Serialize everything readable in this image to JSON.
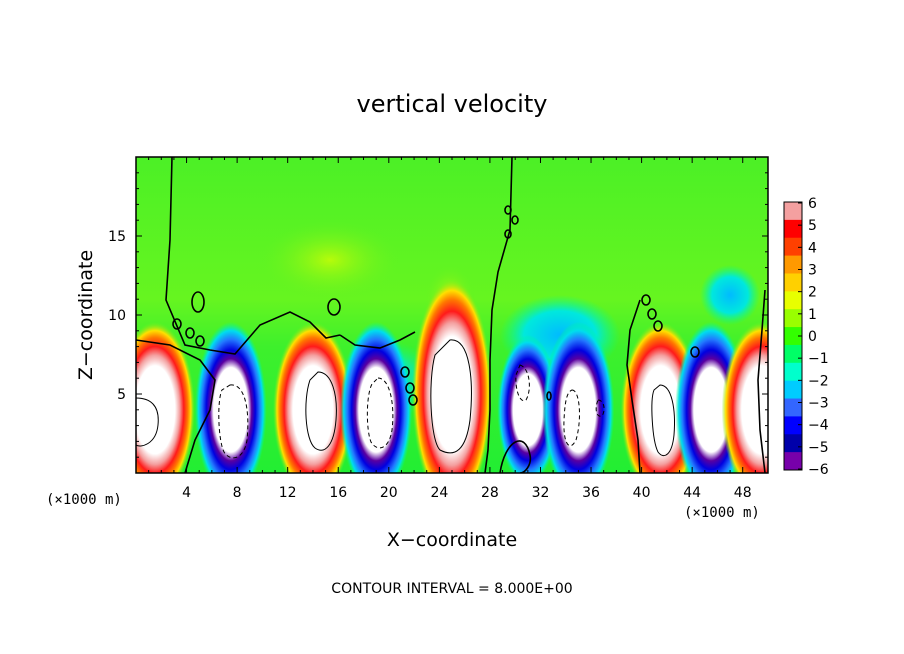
{
  "chart_data": {
    "type": "heatmap",
    "title": "vertical velocity",
    "xlabel": "X−coordinate",
    "ylabel": "Z−coordinate",
    "x_unit": "(×1000 m)",
    "y_unit": "(×1000 m)",
    "x_range": [
      0,
      50
    ],
    "y_range": [
      0,
      20
    ],
    "x_ticks": [
      4,
      8,
      12,
      16,
      20,
      24,
      28,
      32,
      36,
      40,
      44,
      48
    ],
    "y_ticks": [
      5,
      10,
      15
    ],
    "colorbar": {
      "range": [
        -6,
        6
      ],
      "ticks": [
        "6",
        "5",
        "4",
        "3",
        "2",
        "1",
        "0",
        "−1",
        "−2",
        "−3",
        "−4",
        "−5",
        "−6"
      ],
      "colors": [
        "#f4a0a0",
        "#ff0000",
        "#ff4000",
        "#ff9900",
        "#ffd000",
        "#e8ff00",
        "#99ff00",
        "#33ff00",
        "#00ff66",
        "#00ffcc",
        "#00ccff",
        "#3366ff",
        "#0000ff",
        "#0000aa",
        "#7700aa"
      ]
    },
    "contour_interval": "CONTOUR INTERVAL = 8.000E+00",
    "cells": [
      {
        "x": 1.5,
        "peak": 6
      },
      {
        "x": 7.5,
        "peak": -6
      },
      {
        "x": 14,
        "peak": 6
      },
      {
        "x": 19,
        "peak": -6
      },
      {
        "x": 25,
        "peak": 6
      },
      {
        "x": 31,
        "peak": -5
      },
      {
        "x": 35,
        "peak": -6
      },
      {
        "x": 41.5,
        "peak": 6
      },
      {
        "x": 45.5,
        "peak": -6
      },
      {
        "x": 49.5,
        "peak": 6
      }
    ]
  }
}
